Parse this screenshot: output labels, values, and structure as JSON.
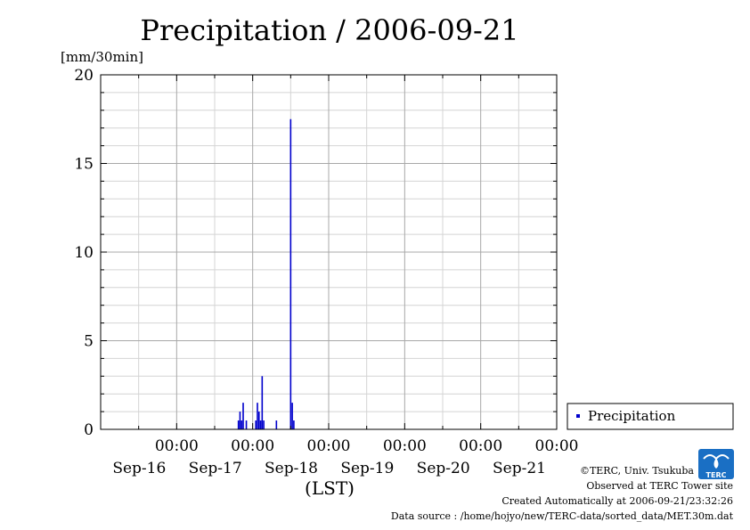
{
  "chart_data": {
    "type": "bar",
    "title": "Precipitation / 2006-09-21",
    "ylabel": "[mm/30min]",
    "xlabel": "(LST)",
    "ylim": [
      0,
      20
    ],
    "yticks": [
      "0",
      "5",
      "10",
      "15",
      "20"
    ],
    "xlim": [
      "2006-09-15T00:00",
      "2006-09-21T00:00"
    ],
    "xticks": [
      {
        "time": "00:00",
        "date": "Sep-16"
      },
      {
        "time": "00:00",
        "date": "Sep-17"
      },
      {
        "time": "00:00",
        "date": "Sep-18"
      },
      {
        "time": "00:00",
        "date": "Sep-19"
      },
      {
        "time": "00:00",
        "date": "Sep-20"
      },
      {
        "time": "00:00",
        "date": "Sep-21"
      }
    ],
    "grid": true,
    "legend_position": "right",
    "series": [
      {
        "name": "Precipitation",
        "color": "#0000cc",
        "points": [
          {
            "t": "2006-09-16T19:30",
            "v": 0.5
          },
          {
            "t": "2006-09-16T20:00",
            "v": 1.0
          },
          {
            "t": "2006-09-16T20:30",
            "v": 0.5
          },
          {
            "t": "2006-09-16T21:00",
            "v": 1.5
          },
          {
            "t": "2006-09-16T22:00",
            "v": 0.5
          },
          {
            "t": "2006-09-17T01:00",
            "v": 0.5
          },
          {
            "t": "2006-09-17T01:30",
            "v": 1.5
          },
          {
            "t": "2006-09-17T02:00",
            "v": 1.0
          },
          {
            "t": "2006-09-17T02:30",
            "v": 0.5
          },
          {
            "t": "2006-09-17T03:00",
            "v": 3.0
          },
          {
            "t": "2006-09-17T03:30",
            "v": 0.5
          },
          {
            "t": "2006-09-17T07:30",
            "v": 0.5
          },
          {
            "t": "2006-09-17T12:00",
            "v": 17.5
          },
          {
            "t": "2006-09-17T12:30",
            "v": 1.5
          },
          {
            "t": "2006-09-17T13:00",
            "v": 0.5
          }
        ]
      }
    ]
  },
  "credits": {
    "copyright": "©TERC, Univ. Tsukuba",
    "observed": "Observed at TERC Tower site",
    "created": "Created Automatically at 2006-09-21/23:32:26",
    "source": "Data source : /home/hojyo/new/TERC-data/sorted_data/MET.30m.dat",
    "logo_text": "TERC"
  }
}
